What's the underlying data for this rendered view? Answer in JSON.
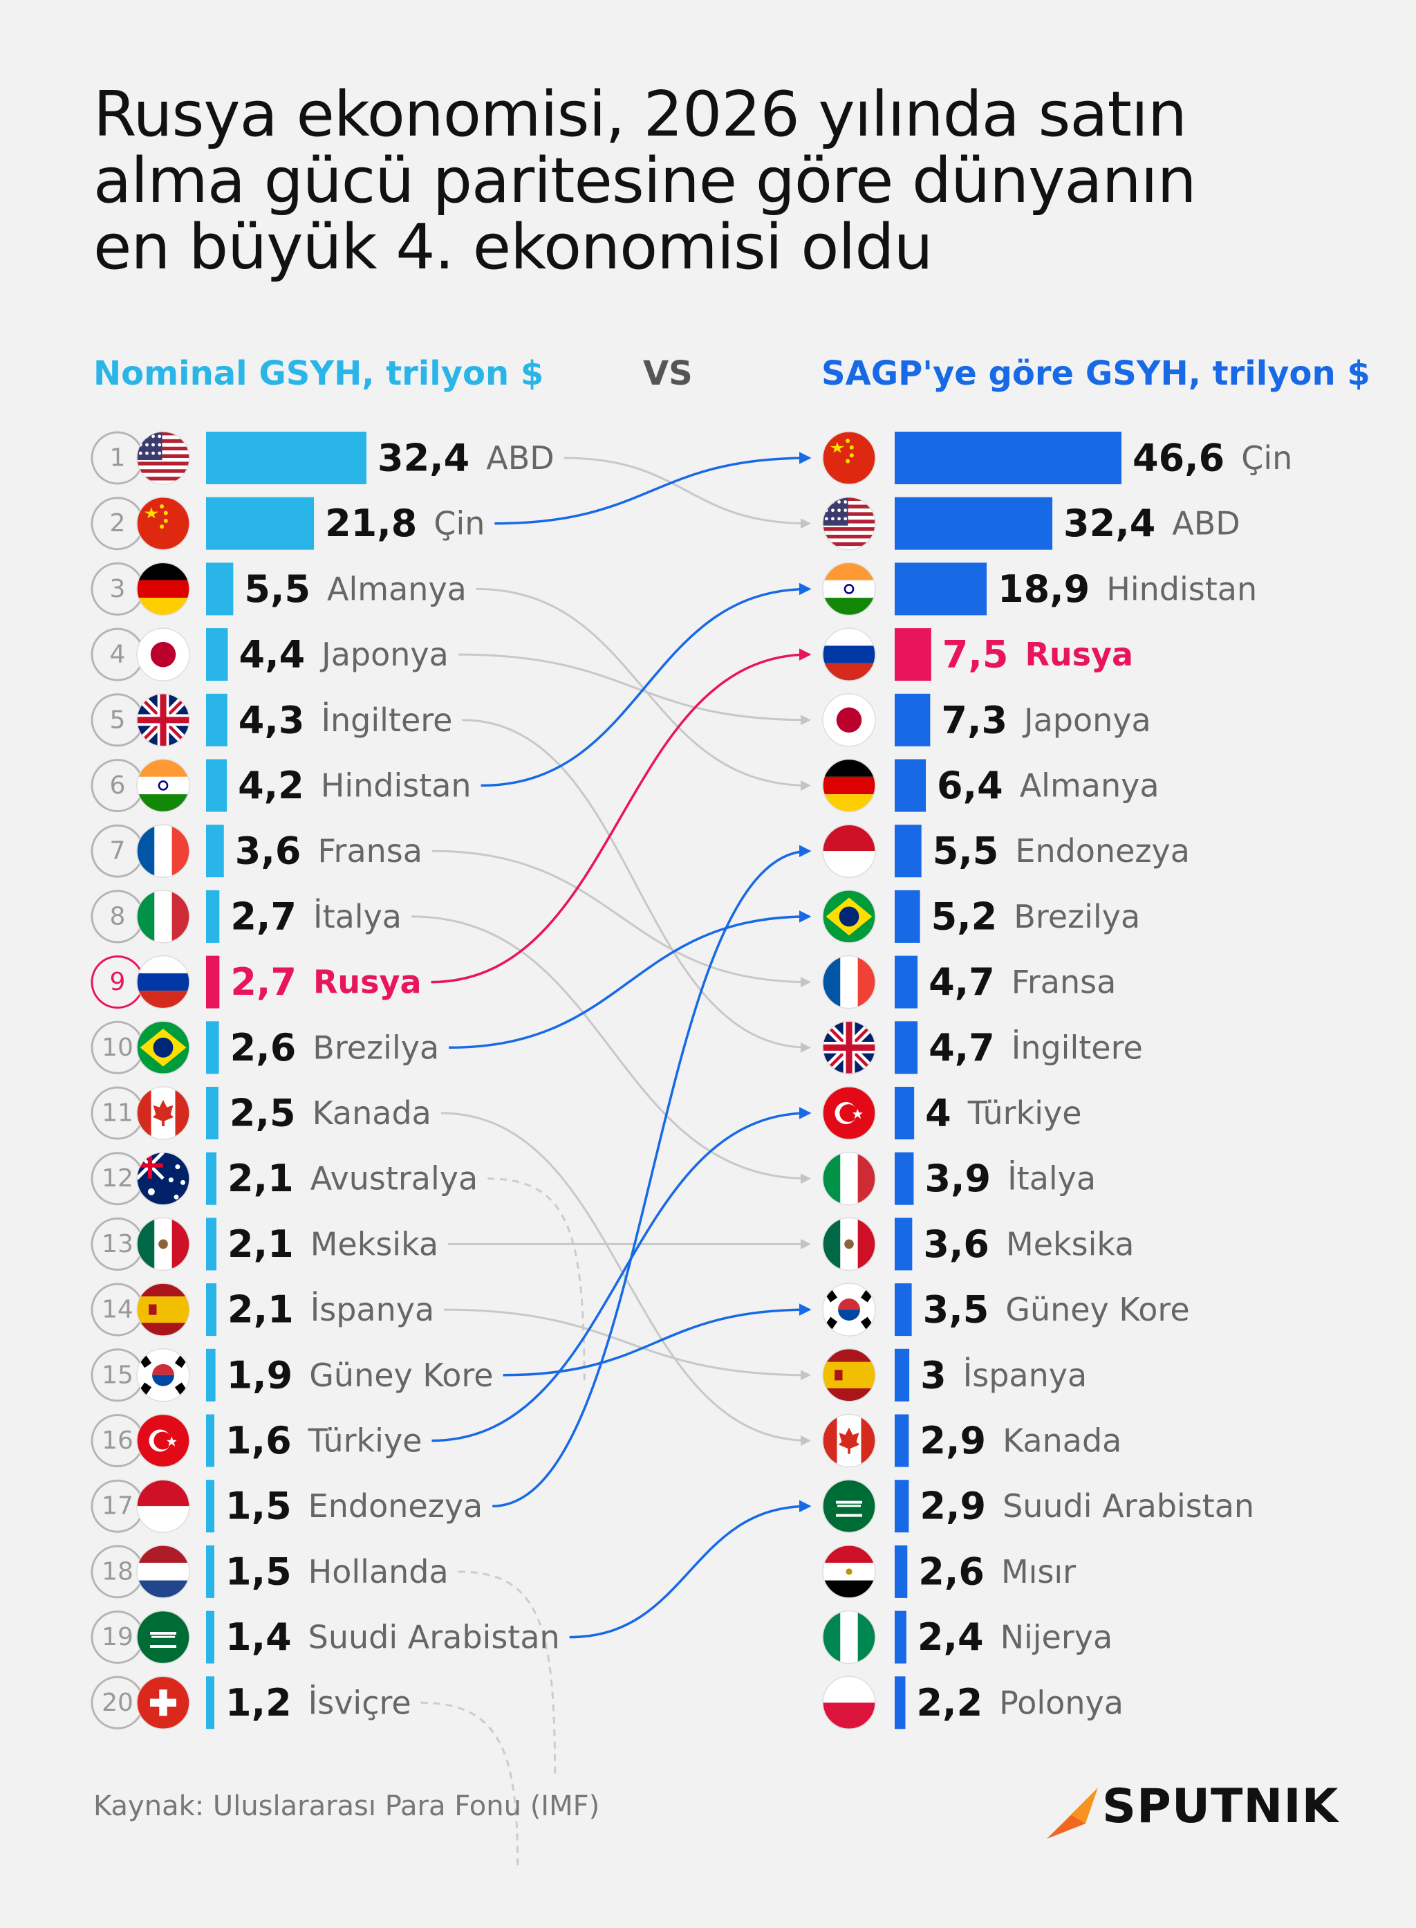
{
  "title_lines": [
    "Rusya ekonomisi, 2026 yılında satın",
    "alma gücü paritesine göre dünyanın",
    "en büyük 4. ekonomisi oldu"
  ],
  "left_header": "Nominal GSYH, trilyon $",
  "vs_label": "VS",
  "right_header": "SAGP'ye göre GSYH, trilyon $",
  "source": "Kaynak: Uluslararası Para Fonu (IMF)",
  "brand": "SPUTNIK",
  "colors": {
    "nominal_bar": "#29b5e8",
    "ppp_bar": "#1769e6",
    "highlight": "#e8155c",
    "connector_gray": "#cfcfcf"
  },
  "chart_data": {
    "type": "bar",
    "left_title": "Nominal GSYH, trilyon $",
    "right_title": "SAGP'ye göre GSYH, trilyon $",
    "highlight_country": "Rusya",
    "nominal": [
      {
        "rank": "1",
        "country": "ABD",
        "value": "32,4",
        "flag": "usa",
        "link": "gray"
      },
      {
        "rank": "2",
        "country": "Çin",
        "value": "21,8",
        "flag": "china",
        "link": "blue"
      },
      {
        "rank": "3",
        "country": "Almanya",
        "value": "5,5",
        "flag": "germany",
        "link": "gray"
      },
      {
        "rank": "4",
        "country": "Japonya",
        "value": "4,4",
        "flag": "japan",
        "link": "gray"
      },
      {
        "rank": "5",
        "country": "İngiltere",
        "value": "4,3",
        "flag": "uk",
        "link": "gray"
      },
      {
        "rank": "6",
        "country": "Hindistan",
        "value": "4,2",
        "flag": "india",
        "link": "blue"
      },
      {
        "rank": "7",
        "country": "Fransa",
        "value": "3,6",
        "flag": "france",
        "link": "gray"
      },
      {
        "rank": "8",
        "country": "İtalya",
        "value": "2,7",
        "flag": "italy",
        "link": "gray"
      },
      {
        "rank": "9",
        "country": "Rusya",
        "value": "2,7",
        "flag": "russia",
        "link": "red"
      },
      {
        "rank": "10",
        "country": "Brezilya",
        "value": "2,6",
        "flag": "brazil",
        "link": "blue"
      },
      {
        "rank": "11",
        "country": "Kanada",
        "value": "2,5",
        "flag": "canada",
        "link": "gray"
      },
      {
        "rank": "12",
        "country": "Avustralya",
        "value": "2,1",
        "flag": "australia",
        "link": "dashed"
      },
      {
        "rank": "13",
        "country": "Meksika",
        "value": "2,1",
        "flag": "mexico",
        "link": "gray"
      },
      {
        "rank": "14",
        "country": "İspanya",
        "value": "2,1",
        "flag": "spain",
        "link": "gray"
      },
      {
        "rank": "15",
        "country": "Güney Kore",
        "value": "1,9",
        "flag": "south-korea",
        "link": "blue"
      },
      {
        "rank": "16",
        "country": "Türkiye",
        "value": "1,6",
        "flag": "turkey",
        "link": "blue"
      },
      {
        "rank": "17",
        "country": "Endonezya",
        "value": "1,5",
        "flag": "indonesia",
        "link": "blue"
      },
      {
        "rank": "18",
        "country": "Hollanda",
        "value": "1,5",
        "flag": "netherlands",
        "link": "dashed"
      },
      {
        "rank": "19",
        "country": "Suudi Arabistan",
        "value": "1,4",
        "flag": "saudi-arabia",
        "link": "blue"
      },
      {
        "rank": "20",
        "country": "İsviçre",
        "value": "1,2",
        "flag": "switzerland",
        "link": "dashed"
      }
    ],
    "ppp": [
      {
        "country": "Çin",
        "value": "46,6",
        "flag": "china"
      },
      {
        "country": "ABD",
        "value": "32,4",
        "flag": "usa"
      },
      {
        "country": "Hindistan",
        "value": "18,9",
        "flag": "india"
      },
      {
        "country": "Rusya",
        "value": "7,5",
        "flag": "russia"
      },
      {
        "country": "Japonya",
        "value": "7,3",
        "flag": "japan"
      },
      {
        "country": "Almanya",
        "value": "6,4",
        "flag": "germany"
      },
      {
        "country": "Endonezya",
        "value": "5,5",
        "flag": "indonesia"
      },
      {
        "country": "Brezilya",
        "value": "5,2",
        "flag": "brazil"
      },
      {
        "country": "Fransa",
        "value": "4,7",
        "flag": "france"
      },
      {
        "country": "İngiltere",
        "value": "4,7",
        "flag": "uk"
      },
      {
        "country": "Türkiye",
        "value": "4",
        "flag": "turkey"
      },
      {
        "country": "İtalya",
        "value": "3,9",
        "flag": "italy"
      },
      {
        "country": "Meksika",
        "value": "3,6",
        "flag": "mexico"
      },
      {
        "country": "Güney Kore",
        "value": "3,5",
        "flag": "south-korea"
      },
      {
        "country": "İspanya",
        "value": "3",
        "flag": "spain"
      },
      {
        "country": "Kanada",
        "value": "2,9",
        "flag": "canada"
      },
      {
        "country": "Suudi Arabistan",
        "value": "2,9",
        "flag": "saudi-arabia"
      },
      {
        "country": "Mısır",
        "value": "2,6",
        "flag": "egypt"
      },
      {
        "country": "Nijerya",
        "value": "2,4",
        "flag": "nigeria"
      },
      {
        "country": "Polonya",
        "value": "2,2",
        "flag": "poland"
      }
    ]
  }
}
